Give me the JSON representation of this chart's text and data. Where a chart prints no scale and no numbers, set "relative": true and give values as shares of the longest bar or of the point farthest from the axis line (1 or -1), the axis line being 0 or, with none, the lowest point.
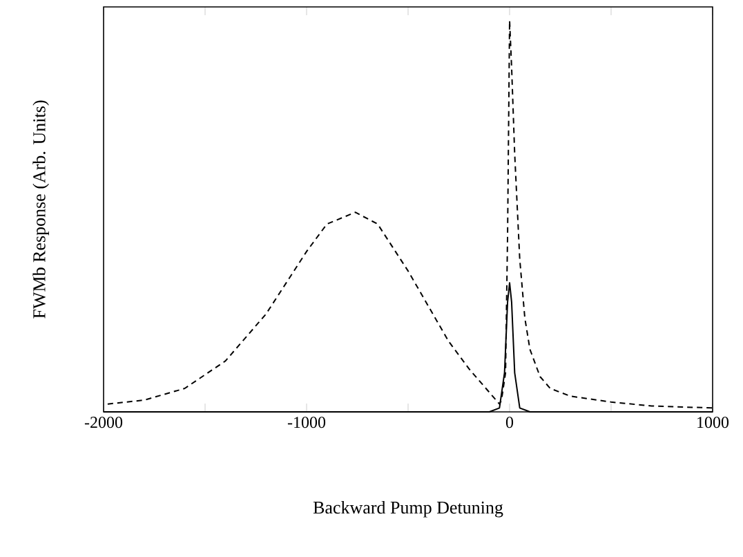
{
  "chart_data": {
    "type": "line",
    "relative": true,
    "xlabel": "Backward Pump Detuning",
    "ylabel": "FWMb Response (Arb. Units)",
    "xlim": [
      -2000,
      1000
    ],
    "xticks": [
      -2000,
      {
        "value": -1500,
        "label": null
      },
      -1000,
      {
        "value": -500,
        "label": null
      },
      0,
      {
        "value": 500,
        "label": null
      },
      1000
    ],
    "series": [
      {
        "color": "#000000",
        "line_style": "dashed",
        "x": [
          -1980,
          -1800,
          -1600,
          -1400,
          -1200,
          -1100,
          -1000,
          -900,
          -760,
          -650,
          -600,
          -500,
          -400,
          -300,
          -200,
          -100,
          -50,
          -40,
          -20,
          -10,
          0,
          10,
          25,
          50,
          75,
          100,
          150,
          200,
          300,
          500,
          700,
          1000
        ],
        "values": [
          0.02,
          0.03,
          0.06,
          0.13,
          0.25,
          0.33,
          0.41,
          0.48,
          0.51,
          0.48,
          0.44,
          0.36,
          0.27,
          0.18,
          0.11,
          0.05,
          0.02,
          0.03,
          0.1,
          0.45,
          1.0,
          0.88,
          0.66,
          0.39,
          0.24,
          0.16,
          0.09,
          0.06,
          0.04,
          0.025,
          0.015,
          0.01
        ]
      },
      {
        "color": "#000000",
        "line_style": "solid",
        "x": [
          -2000,
          -100,
          -50,
          -25,
          -10,
          0,
          10,
          25,
          50,
          100,
          1000
        ],
        "values": [
          0,
          0,
          0.01,
          0.1,
          0.28,
          0.33,
          0.28,
          0.1,
          0.01,
          0,
          0
        ]
      }
    ]
  }
}
